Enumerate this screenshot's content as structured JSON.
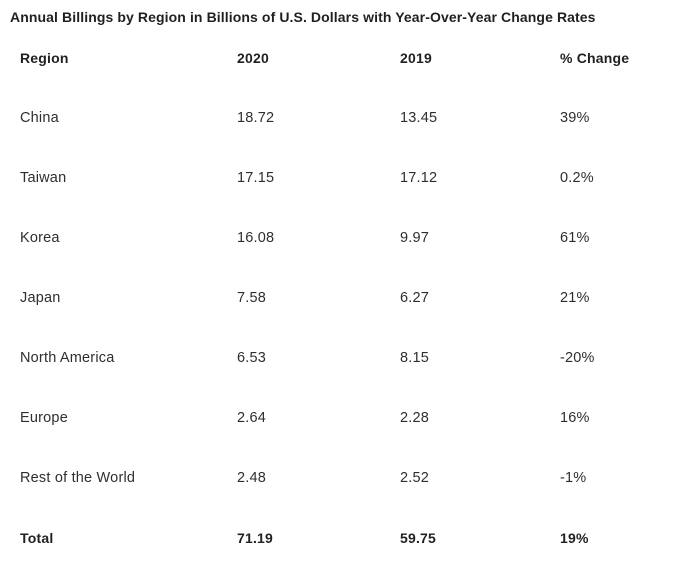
{
  "title": "Annual Billings by Region in Billions of U.S. Dollars with Year-Over-Year Change Rates",
  "colors": {
    "title": "#231f20",
    "body": "#2e2e2e",
    "background": "#ffffff"
  },
  "chart_data": {
    "type": "table",
    "title": "Annual Billings by Region in Billions of U.S. Dollars with Year-Over-Year Change Rates",
    "columns": [
      "Region",
      "2020",
      "2019",
      "% Change"
    ],
    "rows": [
      {
        "region": "China",
        "y2020": "18.72",
        "y2019": "13.45",
        "change": "39%"
      },
      {
        "region": "Taiwan",
        "y2020": "17.15",
        "y2019": "17.12",
        "change": "0.2%"
      },
      {
        "region": "Korea",
        "y2020": "16.08",
        "y2019": "9.97",
        "change": "61%"
      },
      {
        "region": "Japan",
        "y2020": "7.58",
        "y2019": "6.27",
        "change": "21%"
      },
      {
        "region": "North America",
        "y2020": "6.53",
        "y2019": "8.15",
        "change": "-20%"
      },
      {
        "region": "Europe",
        "y2020": "2.64",
        "y2019": "2.28",
        "change": "16%"
      },
      {
        "region": "Rest of the World",
        "y2020": "2.48",
        "y2019": "2.52",
        "change": "-1%"
      }
    ],
    "total": {
      "region": "Total",
      "y2020": "71.19",
      "y2019": "59.75",
      "change": "19%"
    },
    "layout": {
      "grid": false,
      "alignment": "left",
      "background": "#ffffff"
    }
  }
}
